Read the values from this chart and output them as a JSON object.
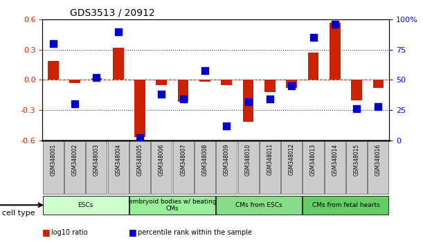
{
  "title": "GDS3513 / 20912",
  "samples": [
    "GSM348001",
    "GSM348002",
    "GSM348003",
    "GSM348004",
    "GSM348005",
    "GSM348006",
    "GSM348007",
    "GSM348008",
    "GSM348009",
    "GSM348010",
    "GSM348011",
    "GSM348012",
    "GSM348013",
    "GSM348014",
    "GSM348015",
    "GSM348016"
  ],
  "log10_ratio": [
    0.19,
    -0.03,
    0.02,
    0.32,
    -0.57,
    -0.05,
    -0.22,
    -0.02,
    -0.05,
    -0.42,
    -0.12,
    -0.08,
    0.27,
    0.57,
    -0.2,
    -0.08
  ],
  "percentile_rank": [
    80,
    30,
    52,
    90,
    2,
    38,
    34,
    58,
    12,
    32,
    34,
    45,
    85,
    96,
    26,
    28
  ],
  "ylim_left": [
    -0.6,
    0.6
  ],
  "ylim_right": [
    0,
    100
  ],
  "yticks_left": [
    -0.6,
    -0.3,
    0.0,
    0.3,
    0.6
  ],
  "yticks_right": [
    0,
    25,
    50,
    75,
    100
  ],
  "ytick_labels_right": [
    "0",
    "25",
    "50",
    "75",
    "100%"
  ],
  "cell_type_groups": [
    {
      "label": "ESCs",
      "start": 0,
      "end": 3,
      "color": "#ccffcc"
    },
    {
      "label": "embryoid bodies w/ beating\nCMs",
      "start": 4,
      "end": 7,
      "color": "#99ee99"
    },
    {
      "label": "CMs from ESCs",
      "start": 8,
      "end": 11,
      "color": "#88dd88"
    },
    {
      "label": "CMs from fetal hearts",
      "start": 12,
      "end": 15,
      "color": "#66cc66"
    }
  ],
  "bar_color": "#cc2200",
  "dot_color": "#0000cc",
  "background_color": "#ffffff",
  "plot_bg_color": "#ffffff",
  "grid_color": "#333333",
  "dotted_lines": [
    -0.3,
    0.3
  ],
  "zero_line_color": "#cc2200",
  "bar_width": 0.5,
  "dot_size": 60,
  "cell_type_label": "cell type",
  "legend_items": [
    {
      "color": "#cc2200",
      "label": "log10 ratio"
    },
    {
      "color": "#0000cc",
      "label": "percentile rank within the sample"
    }
  ]
}
